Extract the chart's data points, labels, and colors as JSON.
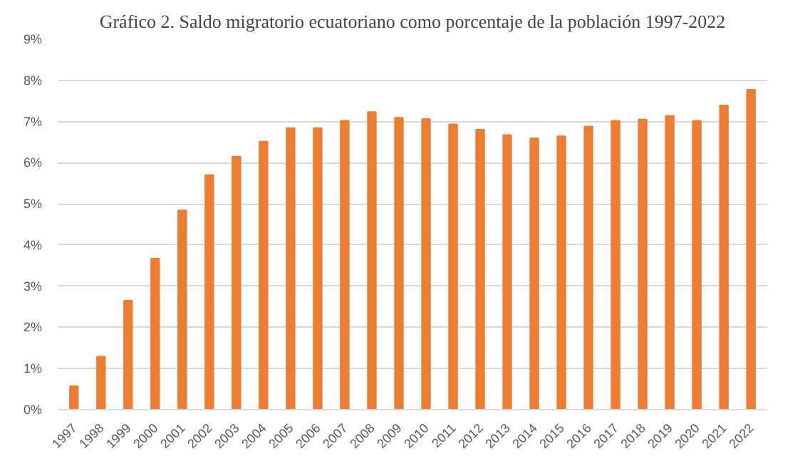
{
  "chart_data": {
    "type": "bar",
    "title": "Gráfico 2. Saldo migratorio ecuatoriano como porcentaje de la población 1997-2022",
    "categories": [
      "1997",
      "1998",
      "1999",
      "2000",
      "2001",
      "2002",
      "2003",
      "2004",
      "2005",
      "2006",
      "2007",
      "2008",
      "2009",
      "2010",
      "2011",
      "2012",
      "2013",
      "2014",
      "2015",
      "2016",
      "2017",
      "2018",
      "2019",
      "2020",
      "2021",
      "2022"
    ],
    "values": [
      0.57,
      1.29,
      2.65,
      3.67,
      4.84,
      5.7,
      6.15,
      6.51,
      6.84,
      6.84,
      7.02,
      7.23,
      7.09,
      7.06,
      6.93,
      6.8,
      6.67,
      6.59,
      6.64,
      6.88,
      7.02,
      7.05,
      7.14,
      7.02,
      7.39,
      7.77
    ],
    "color": "#ed7d31",
    "ylim": [
      0,
      9
    ],
    "yticks": [
      {
        "value": 0,
        "label": "0%"
      },
      {
        "value": 1,
        "label": "1%"
      },
      {
        "value": 2,
        "label": "2%"
      },
      {
        "value": 3,
        "label": "3%"
      },
      {
        "value": 4,
        "label": "4%"
      },
      {
        "value": 5,
        "label": "5%"
      },
      {
        "value": 6,
        "label": "6%"
      },
      {
        "value": 7,
        "label": "7%"
      },
      {
        "value": 8,
        "label": "8%"
      },
      {
        "value": 9,
        "label": "9%"
      }
    ],
    "grid": "y"
  }
}
